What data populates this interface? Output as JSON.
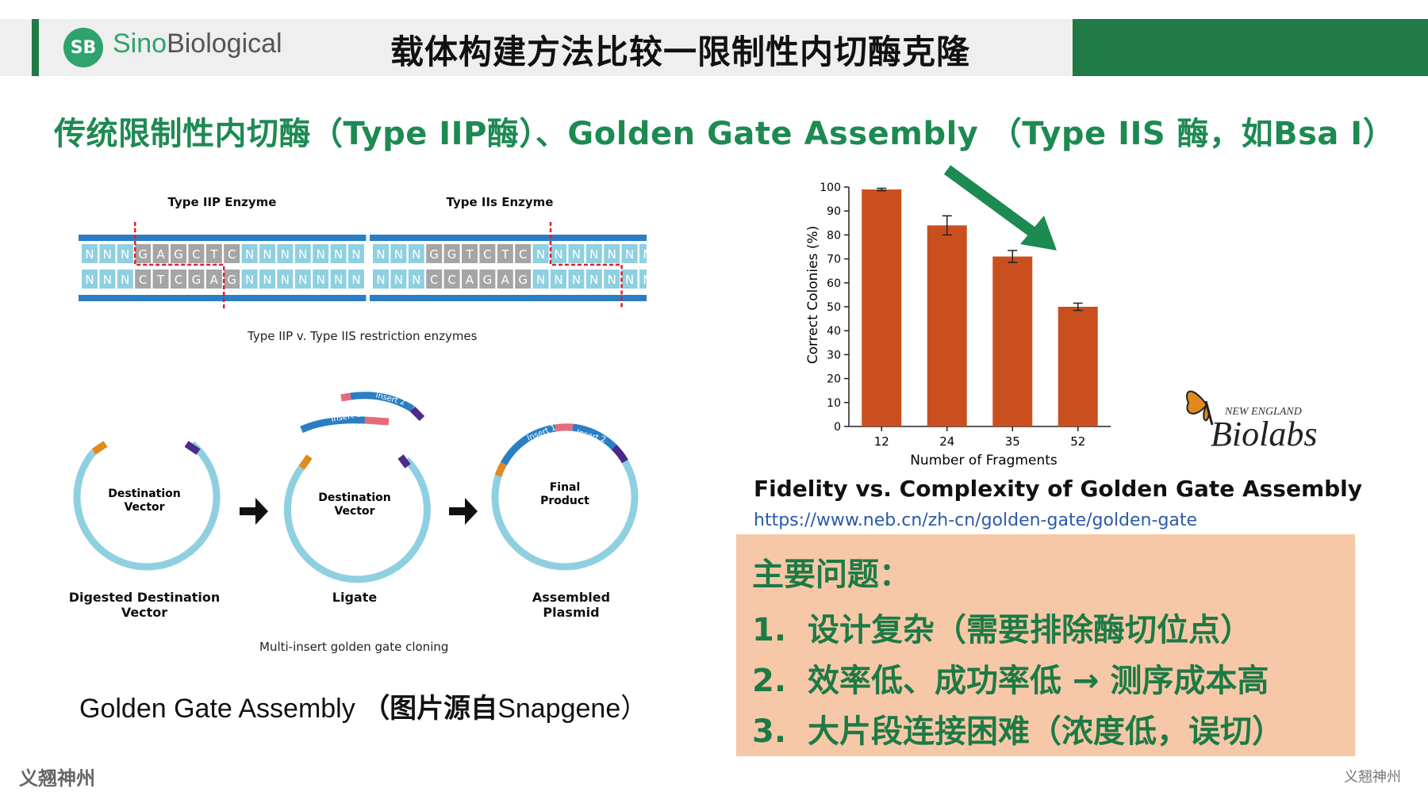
{
  "header": {
    "logo_mark": "SB",
    "brand_a": "Sino",
    "brand_b": "Biological",
    "title": "载体构建方法比较一限制性内切酶克隆"
  },
  "subtitle": "传统限制性内切酶（Type IIP酶）、Golden Gate Assembly （Type IIS 酶，如Bsa I）",
  "enzymes": {
    "left_title": "Type IIP Enzyme",
    "right_title": "Type IIs Enzyme",
    "left_top": [
      "N",
      "N",
      "N",
      "G",
      "A",
      "G",
      "C",
      "T",
      "C",
      "N",
      "N",
      "N",
      "N",
      "N",
      "N",
      "N"
    ],
    "left_bottom": [
      "N",
      "N",
      "N",
      "C",
      "T",
      "C",
      "G",
      "A",
      "G",
      "N",
      "N",
      "N",
      "N",
      "N",
      "N",
      "N"
    ],
    "right_top": [
      "N",
      "N",
      "N",
      "G",
      "G",
      "T",
      "C",
      "T",
      "C",
      "N",
      "N",
      "N",
      "N",
      "N",
      "N",
      "N"
    ],
    "right_bottom": [
      "N",
      "N",
      "N",
      "C",
      "C",
      "A",
      "G",
      "A",
      "G",
      "N",
      "N",
      "N",
      "N",
      "N",
      "N",
      "N"
    ],
    "caption": "Type IIP v. Type IIS restriction enzymes"
  },
  "cloning": {
    "vector_label_1": "Destination",
    "vector_label_2": "Vector",
    "final_label_1": "Final",
    "final_label_2": "Product",
    "insert1": "Insert 1",
    "insert2": "Insert 2",
    "step1_1": "Digested Destination",
    "step1_2": "Vector",
    "step2": "Ligate",
    "step3_1": "Assembled",
    "step3_2": "Plasmid",
    "caption": "Multi-insert golden gate cloning"
  },
  "ga_caption_a": "Golden Gate Assembly ",
  "ga_caption_b": "（图片源自",
  "ga_caption_c": "Snapgene）",
  "chart_data": {
    "type": "bar",
    "categories": [
      "12",
      "24",
      "35",
      "52"
    ],
    "values": [
      99,
      84,
      71,
      50
    ],
    "errors": [
      0.5,
      4,
      2.5,
      1.5
    ],
    "xlabel": "Number of Fragments",
    "ylabel": "Correct Colonies (%)",
    "ylim": [
      0,
      100
    ],
    "yticks": [
      0,
      10,
      20,
      30,
      40,
      50,
      60,
      70,
      80,
      90,
      100
    ],
    "bar_color": "#c9501e",
    "arrow_color": "#1d8a52"
  },
  "neb": {
    "small": "NEW ENGLAND",
    "big": "Biolabs"
  },
  "fidelity_title": "Fidelity vs. Complexity of Golden Gate Assembly",
  "fidelity_url": "https://www.neb.cn/zh-cn/golden-gate/golden-gate",
  "issues": {
    "title": "主要问题：",
    "items": [
      {
        "num": "1.",
        "text": "设计复杂（需要排除酶切位点）"
      },
      {
        "num": "2.",
        "text": "效率低、成功率低 → 测序成本高"
      },
      {
        "num": "3.",
        "text": "大片段连接困难（浓度低，误切）"
      }
    ]
  },
  "footer": {
    "left": "义翘神州",
    "right": "义翘神州"
  },
  "colors": {
    "green": "#1d8a52",
    "header_green": "#1f7a45",
    "issue_bg": "#f6c8a8",
    "dna_blue": "#2a7fc4",
    "ring": "#8fd0e0"
  }
}
